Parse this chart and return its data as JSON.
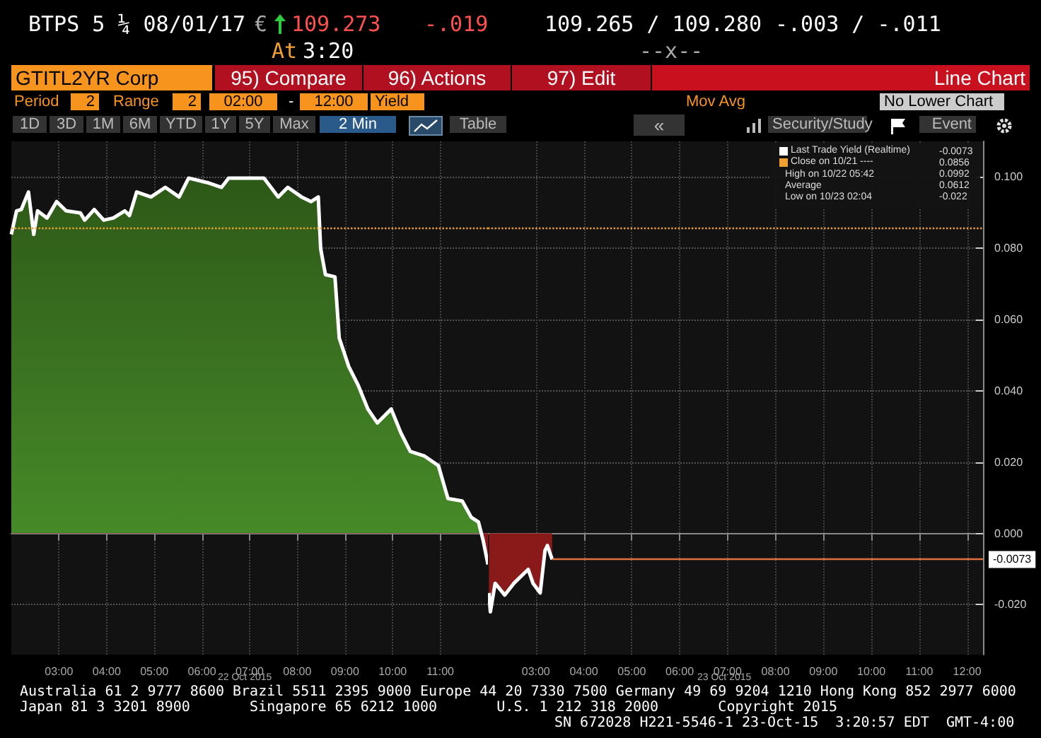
{
  "chart_data": [
    {
      "type": "area",
      "x": [
        2.0,
        2.11,
        2.21,
        2.36,
        2.47,
        2.55,
        2.75,
        2.95,
        3.15,
        3.45,
        3.54,
        3.74,
        3.94,
        4.14,
        4.38,
        4.48,
        4.63,
        4.93,
        5.23,
        5.52,
        5.72,
        6.12,
        6.41,
        6.56,
        7.3,
        7.6,
        7.8,
        8.09,
        8.29,
        8.44,
        8.49,
        8.59,
        8.79,
        8.88,
        9.08,
        9.28,
        9.48,
        9.68,
        9.97,
        10.17,
        10.37,
        10.67,
        10.96,
        11.16,
        11.46,
        11.65,
        11.8,
        11.9,
        12.0
      ],
      "series": [
        {
          "color": "#ffffff",
          "values": [
            0.0839,
            0.0905,
            0.0909,
            0.0958,
            0.0839,
            0.0905,
            0.0885,
            0.0931,
            0.0905,
            0.0899,
            0.0879,
            0.0909,
            0.0879,
            0.0885,
            0.0905,
            0.0892,
            0.0958,
            0.0944,
            0.0971,
            0.0944,
            0.0997,
            0.0984,
            0.0971,
            0.0997,
            0.0997,
            0.0944,
            0.0971,
            0.0944,
            0.0931,
            0.0944,
            0.0799,
            0.0726,
            0.072,
            0.0548,
            0.0468,
            0.0415,
            0.0349,
            0.031,
            0.0349,
            0.0283,
            0.023,
            0.0217,
            0.019,
            0.0098,
            0.0091,
            0.0045,
            0.0032,
            -0.002,
            -0.0087
          ]
        }
      ],
      "xlim": [
        2,
        12
      ],
      "xticks": [
        {
          "value": 3,
          "label": "03:00"
        },
        {
          "value": 4,
          "label": "04:00"
        },
        {
          "value": 5,
          "label": "05:00"
        },
        {
          "value": 6,
          "label": "06:00"
        },
        {
          "value": 7,
          "label": "07:00"
        },
        {
          "value": 8,
          "label": "08:00"
        },
        {
          "value": 9,
          "label": "09:00"
        },
        {
          "value": 10,
          "label": "10:00"
        },
        {
          "value": 11,
          "label": "11:00"
        }
      ],
      "ylim": [
        -0.034,
        0.11
      ],
      "yticks": [
        -0.02,
        0,
        0.02,
        0.04,
        0.06,
        0.08,
        0.1
      ],
      "tick_labels": "x",
      "ref_lines": [
        {
          "axis": "y",
          "value": 0.0856,
          "color": "#f0a030",
          "line_style": "dotted"
        }
      ],
      "grid": true,
      "marker": "none",
      "annotations": [
        "BTPS 5 ¼ 08/01/17",
        "€",
        "109.273",
        "-.019",
        "109.265 / 109.280",
        "-.003 / -.011",
        "At",
        "3:20",
        "--x--",
        "GTITL2YR Corp",
        "95) Compare",
        "96) Actions",
        "97) Edit",
        "Line Chart",
        "Period",
        "2",
        "Range",
        "2",
        "02:00",
        "-",
        "12:00",
        "Yield",
        "Mov Avg",
        "No Lower Chart",
        "1D",
        "3D",
        "1M",
        "6M",
        "YTD",
        "1Y",
        "5Y",
        "Max",
        "2 Min",
        "Table",
        "«",
        "Security/Study",
        "Event",
        "22 Oct 2015",
        "Australia 61 2 9777 8600 Brazil 5511 2395 9000 Europe 44 20 7330 7500 Germany 49 69 9204 1210 Hong Kong 852 2977 6000",
        "Japan 81 3 3201 8900       Singapore 65 6212 1000       U.S. 1 212 318 2000       Copyright 2015",
        "SN 672028 H221-5546-1 23-Oct-15  3:20:57 EDT  GMT-4:00"
      ]
    },
    {
      "type": "area",
      "x": [
        2.02,
        2.05,
        2.15,
        2.35,
        2.54,
        2.74,
        2.84,
        2.94,
        3.09,
        3.19,
        3.24,
        3.34
      ],
      "series": [
        {
          "name": "Last Trade Yield (Realtime)",
          "color": "#ffffff",
          "values": [
            -0.0167,
            -0.022,
            -0.014,
            -0.0173,
            -0.014,
            -0.0114,
            -0.0101,
            -0.014,
            -0.0167,
            -0.0048,
            -0.0034,
            -0.0073
          ]
        }
      ],
      "xlim": [
        2,
        12.33
      ],
      "xticks": [
        {
          "value": 3,
          "label": "03:00"
        },
        {
          "value": 4,
          "label": "04:00"
        },
        {
          "value": 5,
          "label": "05:00"
        },
        {
          "value": 6,
          "label": "06:00"
        },
        {
          "value": 7,
          "label": "07:00"
        },
        {
          "value": 8,
          "label": "08:00"
        },
        {
          "value": 9,
          "label": "09:00"
        },
        {
          "value": 10,
          "label": "10:00"
        },
        {
          "value": 11,
          "label": "11:00"
        },
        {
          "value": 12,
          "label": "12:00"
        }
      ],
      "ylim": [
        -0.034,
        0.11
      ],
      "yticks": [
        {
          "value": -0.02,
          "label": "-0.020"
        },
        {
          "value": 0,
          "label": "0.000"
        },
        {
          "value": 0.02,
          "label": "0.020"
        },
        {
          "value": 0.04,
          "label": "0.040"
        },
        {
          "value": 0.06,
          "label": "0.060"
        },
        {
          "value": 0.08,
          "label": "0.080"
        },
        {
          "value": 0.1,
          "label": "0.100"
        }
      ],
      "ref_lines": [
        {
          "axis": "y",
          "value": 0.0856,
          "label": "Close on 10/21 ----",
          "color": "#f0a030",
          "line_style": "dotted"
        },
        {
          "axis": "y",
          "value": -0.0073,
          "label": "-0.0073",
          "color": "#e07040",
          "line_style": "solid"
        }
      ],
      "grid": true,
      "legend": "top right",
      "marker": "none",
      "annotations": [
        "-0.0073",
        "0.0856",
        "High on 10/22 05:42",
        "0.0992",
        "Average",
        "0.0612",
        "Low on 10/23 02:04",
        "-0.022",
        "23 Oct 2015"
      ]
    }
  ]
}
